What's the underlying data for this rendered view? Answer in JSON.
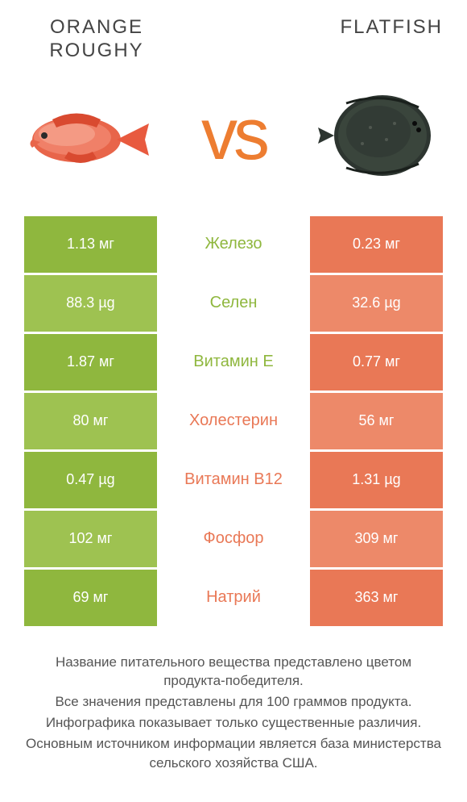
{
  "colors": {
    "left": "#8fb73e",
    "right": "#e97856",
    "left_alt": "#9ec251",
    "right_alt": "#ed8969",
    "vs": "#ed7d31"
  },
  "left_title": "ORANGE ROUGHY",
  "right_title": "FLATFISH",
  "vs_label": "vs",
  "rows": [
    {
      "left": "1.13 мг",
      "name": "Железо",
      "right": "0.23 мг",
      "winner": "left"
    },
    {
      "left": "88.3 µg",
      "name": "Селен",
      "right": "32.6 µg",
      "winner": "left"
    },
    {
      "left": "1.87 мг",
      "name": "Витамин E",
      "right": "0.77 мг",
      "winner": "left"
    },
    {
      "left": "80 мг",
      "name": "Холестерин",
      "right": "56 мг",
      "winner": "right"
    },
    {
      "left": "0.47 µg",
      "name": "Витамин B12",
      "right": "1.31 µg",
      "winner": "right"
    },
    {
      "left": "102 мг",
      "name": "Фосфор",
      "right": "309 мг",
      "winner": "right"
    },
    {
      "left": "69 мг",
      "name": "Натрий",
      "right": "363 мг",
      "winner": "right"
    }
  ],
  "footer": [
    "Название питательного вещества представлено цветом продукта-победителя.",
    "Все значения представлены для 100 граммов продукта.",
    "Инфографика показывает только существенные различия.",
    "Основным источником информации является база министерства сельского хозяйства США."
  ]
}
